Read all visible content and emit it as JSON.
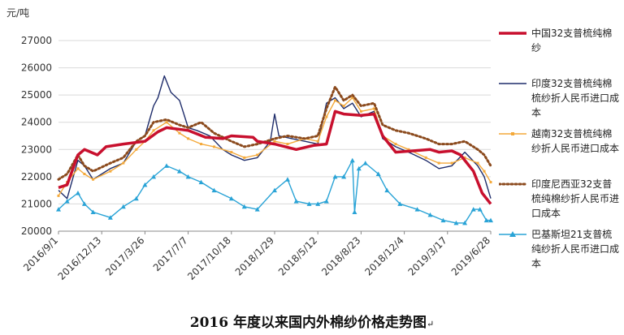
{
  "caption": "2016 年度以来国内外棉纱价格走势图",
  "caption_mark": "↵",
  "chart_data": {
    "type": "line",
    "ylabel": "元/吨",
    "ylim": [
      20000,
      27000
    ],
    "y_ticks": [
      20000,
      21000,
      22000,
      23000,
      24000,
      25000,
      26000,
      27000
    ],
    "x_tick_labels": [
      "2016/9/1",
      "2016/12/13",
      "2017/3/26",
      "2017/7/7",
      "2017/10/18",
      "2018/1/29",
      "2018/5/12",
      "2018/8/23",
      "2018/12/4",
      "2019/3/17",
      "2019/6/28"
    ],
    "grid": "horizontal",
    "legend_position": "right",
    "series": [
      {
        "name": "中国32支普梳纯棉纱",
        "color": "#c8102e",
        "style": "solid-thick",
        "points": [
          [
            0,
            21600
          ],
          [
            0.2,
            21700
          ],
          [
            0.45,
            22800
          ],
          [
            0.6,
            23000
          ],
          [
            0.9,
            22800
          ],
          [
            1.1,
            23100
          ],
          [
            1.5,
            23200
          ],
          [
            2.0,
            23300
          ],
          [
            2.3,
            23650
          ],
          [
            2.5,
            23800
          ],
          [
            3.0,
            23700
          ],
          [
            3.4,
            23450
          ],
          [
            3.8,
            23400
          ],
          [
            4.0,
            23500
          ],
          [
            4.5,
            23450
          ],
          [
            4.6,
            23300
          ],
          [
            5.0,
            23200
          ],
          [
            5.5,
            23000
          ],
          [
            5.9,
            23150
          ],
          [
            6.2,
            23200
          ],
          [
            6.4,
            24400
          ],
          [
            6.6,
            24300
          ],
          [
            7.0,
            24250
          ],
          [
            7.3,
            24300
          ],
          [
            7.5,
            23500
          ],
          [
            7.8,
            22900
          ],
          [
            8.2,
            22950
          ],
          [
            8.6,
            23000
          ],
          [
            8.8,
            22900
          ],
          [
            9.1,
            22950
          ],
          [
            9.3,
            22800
          ],
          [
            9.6,
            22200
          ],
          [
            9.8,
            21400
          ],
          [
            10.0,
            21000
          ]
        ]
      },
      {
        "name": "印度32支普梳纯棉梳纱折人民币进口成本",
        "color": "#1f2d6b",
        "style": "solid-thin",
        "points": [
          [
            0,
            21500
          ],
          [
            0.2,
            21200
          ],
          [
            0.45,
            22600
          ],
          [
            0.6,
            22400
          ],
          [
            0.8,
            21900
          ],
          [
            1.2,
            22300
          ],
          [
            1.5,
            22500
          ],
          [
            1.8,
            23300
          ],
          [
            2.0,
            23500
          ],
          [
            2.2,
            24600
          ],
          [
            2.3,
            24900
          ],
          [
            2.45,
            25700
          ],
          [
            2.6,
            25100
          ],
          [
            2.8,
            24800
          ],
          [
            3.0,
            23800
          ],
          [
            3.2,
            23700
          ],
          [
            3.5,
            23500
          ],
          [
            3.8,
            23000
          ],
          [
            4.0,
            22800
          ],
          [
            4.3,
            22600
          ],
          [
            4.6,
            22700
          ],
          [
            4.9,
            23300
          ],
          [
            5.0,
            24300
          ],
          [
            5.1,
            23500
          ],
          [
            5.4,
            23400
          ],
          [
            5.7,
            23300
          ],
          [
            6.0,
            23200
          ],
          [
            6.2,
            24700
          ],
          [
            6.4,
            24900
          ],
          [
            6.6,
            24500
          ],
          [
            6.8,
            24700
          ],
          [
            7.0,
            24200
          ],
          [
            7.3,
            24400
          ],
          [
            7.5,
            23400
          ],
          [
            7.8,
            23100
          ],
          [
            8.1,
            22900
          ],
          [
            8.5,
            22600
          ],
          [
            8.8,
            22300
          ],
          [
            9.1,
            22400
          ],
          [
            9.4,
            22900
          ],
          [
            9.7,
            22400
          ],
          [
            9.85,
            22000
          ],
          [
            10.0,
            21200
          ]
        ]
      },
      {
        "name": "越南32支普梳纯棉纱折人民币进口成本",
        "color": "#f4a93a",
        "style": "solid-markers",
        "points": [
          [
            0,
            21300
          ],
          [
            0.2,
            21800
          ],
          [
            0.45,
            22300
          ],
          [
            0.6,
            22100
          ],
          [
            0.8,
            21900
          ],
          [
            1.2,
            22200
          ],
          [
            1.5,
            22500
          ],
          [
            1.8,
            23000
          ],
          [
            2.0,
            23300
          ],
          [
            2.2,
            23700
          ],
          [
            2.5,
            24000
          ],
          [
            2.8,
            23600
          ],
          [
            3.0,
            23400
          ],
          [
            3.3,
            23200
          ],
          [
            3.6,
            23100
          ],
          [
            4.0,
            22900
          ],
          [
            4.3,
            22700
          ],
          [
            4.6,
            22800
          ],
          [
            5.0,
            23300
          ],
          [
            5.3,
            23200
          ],
          [
            5.7,
            23400
          ],
          [
            6.0,
            23300
          ],
          [
            6.2,
            24200
          ],
          [
            6.4,
            24800
          ],
          [
            6.6,
            24600
          ],
          [
            6.8,
            24900
          ],
          [
            7.0,
            24400
          ],
          [
            7.3,
            24500
          ],
          [
            7.5,
            23500
          ],
          [
            7.8,
            23200
          ],
          [
            8.1,
            23000
          ],
          [
            8.5,
            22700
          ],
          [
            8.8,
            22500
          ],
          [
            9.1,
            22500
          ],
          [
            9.4,
            22700
          ],
          [
            9.7,
            22500
          ],
          [
            9.85,
            22200
          ],
          [
            10.0,
            21800
          ]
        ]
      },
      {
        "name": "印度尼西亚32支普梳纯棉纱折人民币进口成本",
        "color": "#8b4a1d",
        "style": "dotted",
        "points": [
          [
            0,
            21900
          ],
          [
            0.2,
            22100
          ],
          [
            0.45,
            22800
          ],
          [
            0.6,
            22400
          ],
          [
            0.8,
            22200
          ],
          [
            1.2,
            22500
          ],
          [
            1.5,
            22700
          ],
          [
            1.8,
            23300
          ],
          [
            2.0,
            23500
          ],
          [
            2.2,
            24000
          ],
          [
            2.5,
            24100
          ],
          [
            2.8,
            23900
          ],
          [
            3.0,
            23800
          ],
          [
            3.3,
            24000
          ],
          [
            3.6,
            23600
          ],
          [
            4.0,
            23300
          ],
          [
            4.3,
            23100
          ],
          [
            4.6,
            23200
          ],
          [
            5.0,
            23400
          ],
          [
            5.3,
            23500
          ],
          [
            5.7,
            23400
          ],
          [
            6.0,
            23500
          ],
          [
            6.2,
            24500
          ],
          [
            6.4,
            25300
          ],
          [
            6.6,
            24800
          ],
          [
            6.8,
            25000
          ],
          [
            7.0,
            24600
          ],
          [
            7.3,
            24700
          ],
          [
            7.5,
            23900
          ],
          [
            7.8,
            23700
          ],
          [
            8.1,
            23600
          ],
          [
            8.5,
            23400
          ],
          [
            8.8,
            23200
          ],
          [
            9.1,
            23200
          ],
          [
            9.4,
            23300
          ],
          [
            9.7,
            23000
          ],
          [
            9.85,
            22800
          ],
          [
            10.0,
            22400
          ]
        ]
      },
      {
        "name": "巴基斯坦21支普梳纯纱折人民币进口成本",
        "color": "#29a3d6",
        "style": "solid-triangles",
        "points": [
          [
            0,
            20800
          ],
          [
            0.2,
            21100
          ],
          [
            0.45,
            21400
          ],
          [
            0.6,
            21000
          ],
          [
            0.8,
            20700
          ],
          [
            1.2,
            20500
          ],
          [
            1.5,
            20900
          ],
          [
            1.8,
            21200
          ],
          [
            2.0,
            21700
          ],
          [
            2.2,
            22000
          ],
          [
            2.5,
            22400
          ],
          [
            2.8,
            22200
          ],
          [
            3.0,
            22000
          ],
          [
            3.3,
            21800
          ],
          [
            3.6,
            21500
          ],
          [
            4.0,
            21200
          ],
          [
            4.3,
            20900
          ],
          [
            4.6,
            20800
          ],
          [
            5.0,
            21500
          ],
          [
            5.3,
            21900
          ],
          [
            5.5,
            21100
          ],
          [
            5.8,
            21000
          ],
          [
            6.0,
            21000
          ],
          [
            6.2,
            21100
          ],
          [
            6.4,
            22000
          ],
          [
            6.6,
            22000
          ],
          [
            6.8,
            22600
          ],
          [
            6.85,
            20700
          ],
          [
            6.95,
            22300
          ],
          [
            7.1,
            22500
          ],
          [
            7.4,
            22100
          ],
          [
            7.6,
            21500
          ],
          [
            7.9,
            21000
          ],
          [
            8.3,
            20800
          ],
          [
            8.6,
            20600
          ],
          [
            8.9,
            20400
          ],
          [
            9.2,
            20300
          ],
          [
            9.4,
            20300
          ],
          [
            9.6,
            20800
          ],
          [
            9.75,
            20800
          ],
          [
            9.9,
            20400
          ],
          [
            10.0,
            20400
          ]
        ]
      }
    ]
  }
}
